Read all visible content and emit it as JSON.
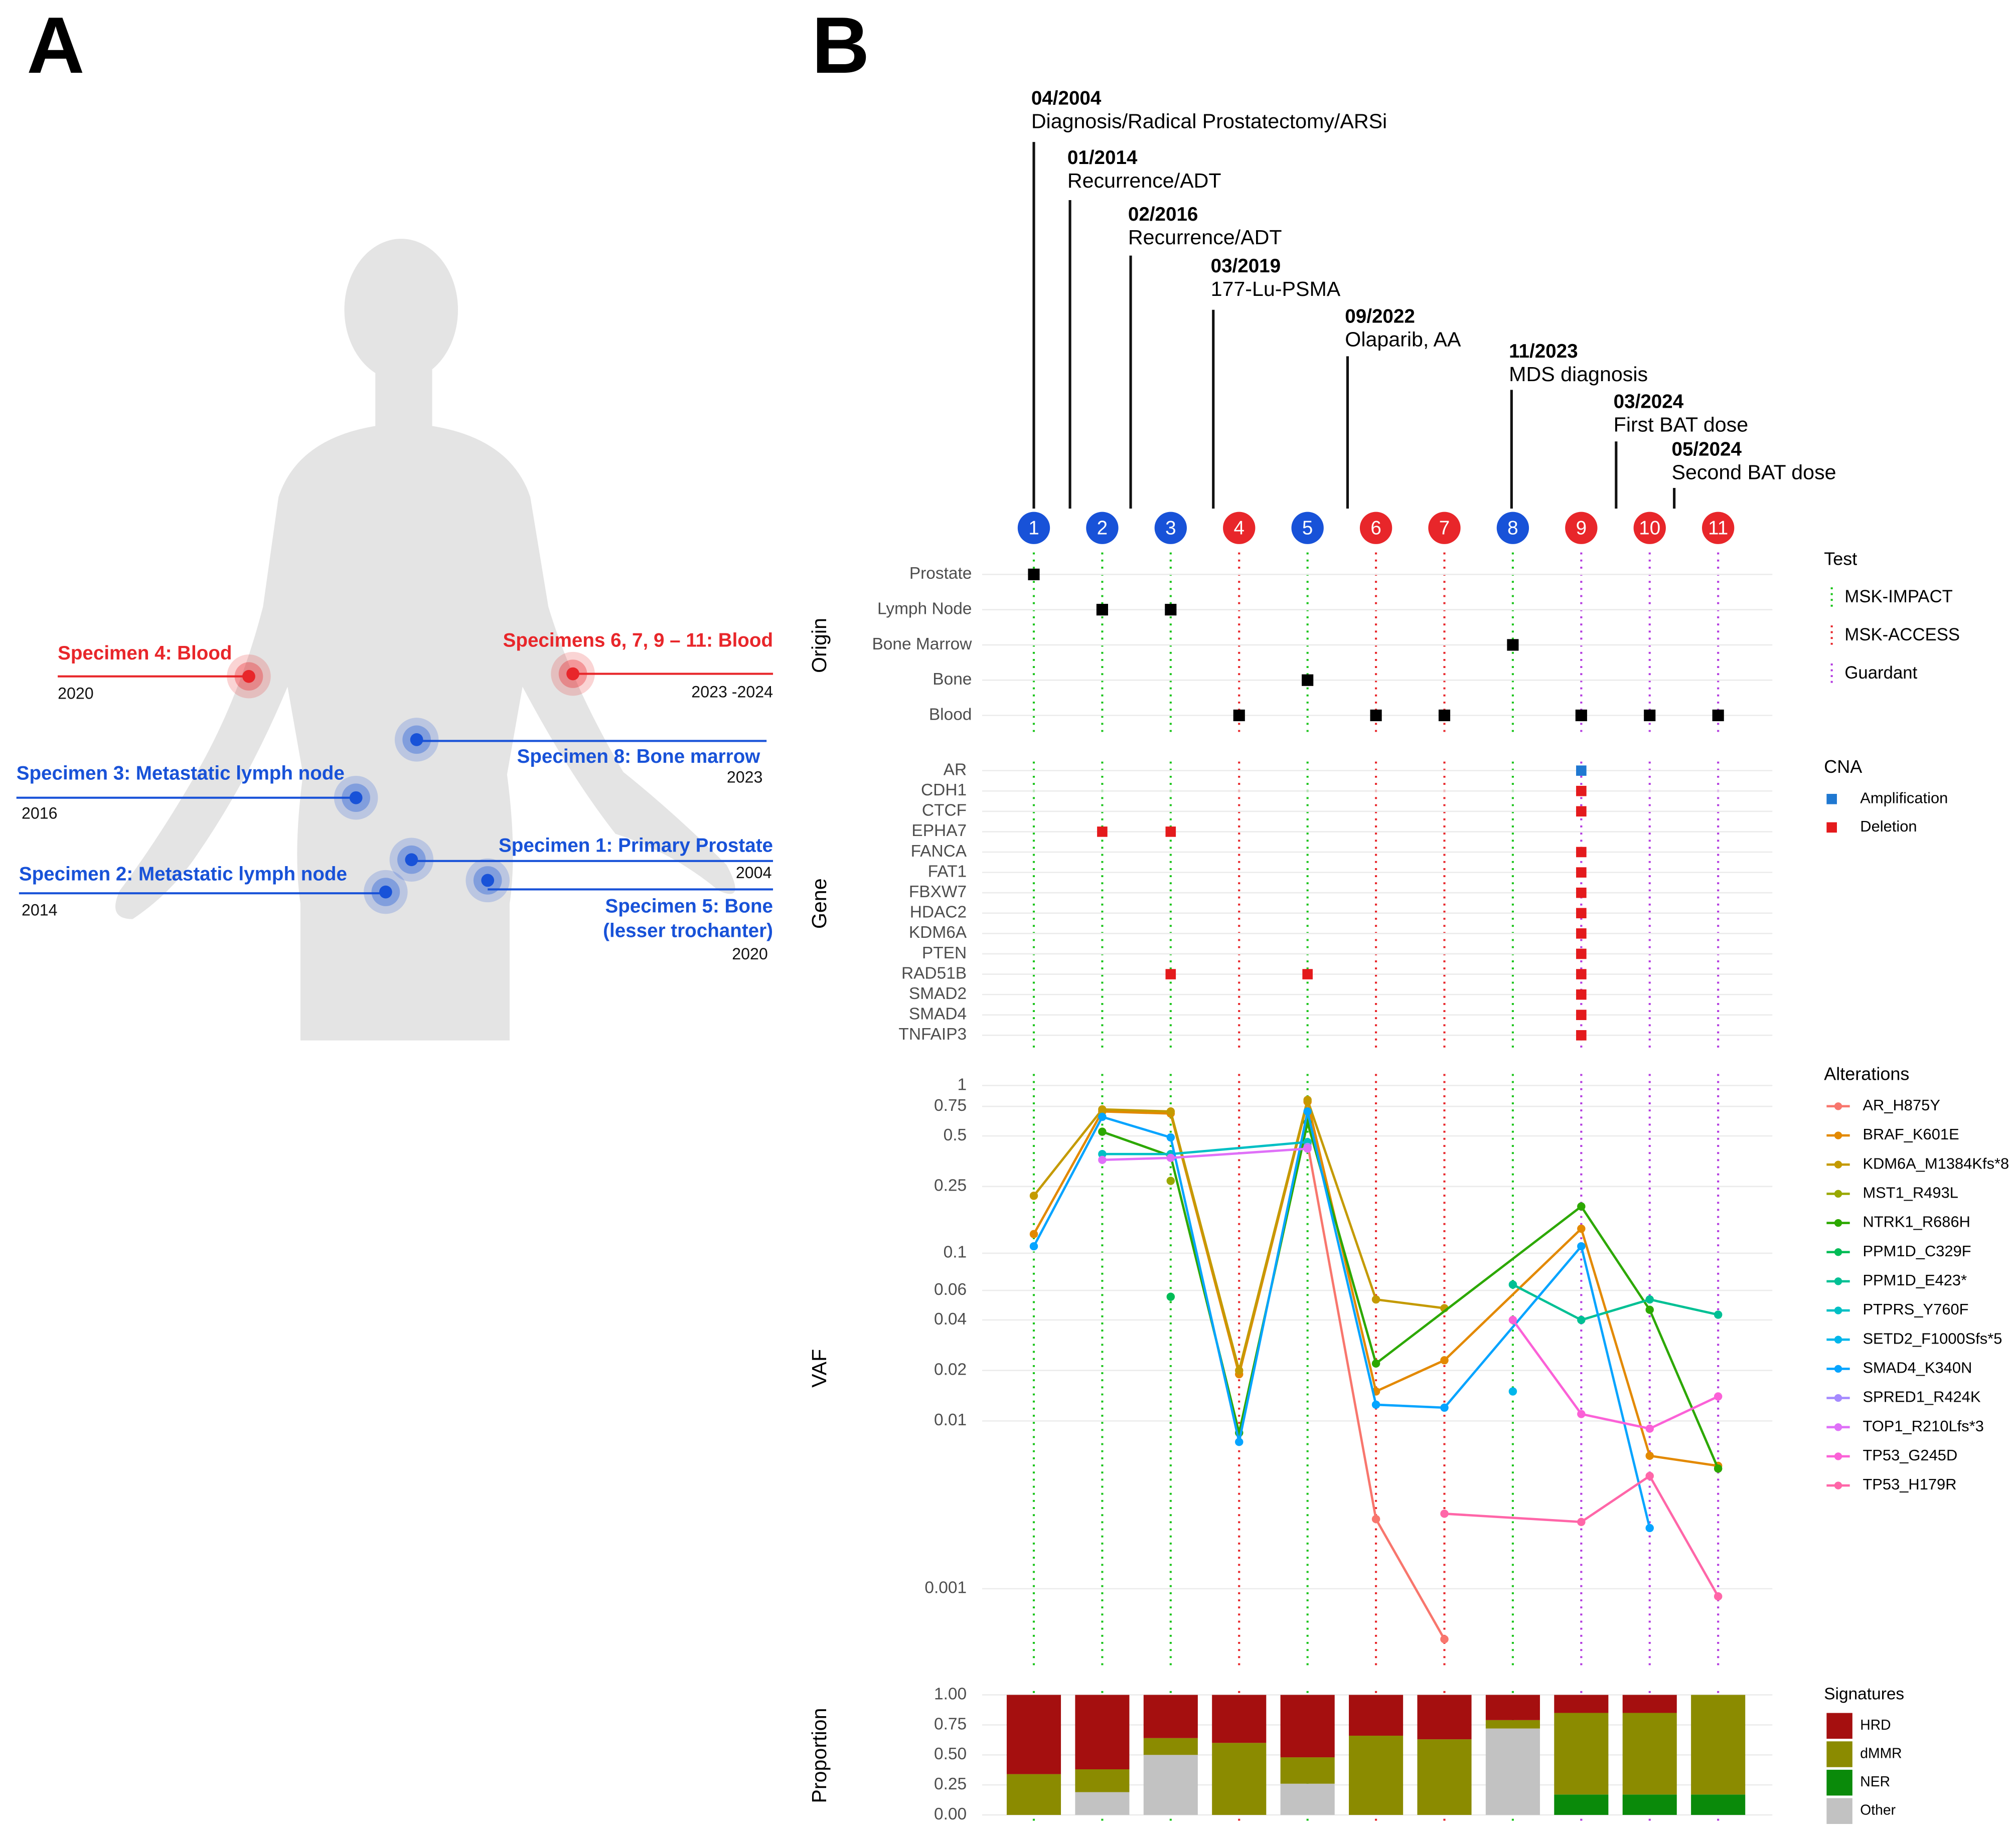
{
  "panel_labels": [
    "A",
    "B"
  ],
  "body_map": {
    "annotations": [
      {
        "lines": [
          "Specimen 4: Blood"
        ],
        "year": "2020",
        "color": "#e8262a"
      },
      {
        "lines": [
          "Specimens 6, 7, 9 – 11: Blood"
        ],
        "year": "2023 -2024",
        "color": "#e8262a"
      },
      {
        "lines": [
          "Specimen 8: Bone marrow"
        ],
        "year": "2023",
        "color": "#1852d8"
      },
      {
        "lines": [
          "Specimen 3: Metastatic lymph node"
        ],
        "year": "2016",
        "color": "#1852d8"
      },
      {
        "lines": [
          "Specimen 1: Primary Prostate"
        ],
        "year": "2004",
        "color": "#1852d8"
      },
      {
        "lines": [
          "Specimen 2: Metastatic lymph node"
        ],
        "year": "2014",
        "color": "#1852d8"
      },
      {
        "lines": [
          "Specimen 5: Bone",
          "(lesser trochanter)"
        ],
        "year": "2020",
        "color": "#1852d8"
      }
    ]
  },
  "timeline": {
    "events": [
      {
        "date": "04/2004",
        "label": "Diagnosis/Radical Prostatectomy/ARSi"
      },
      {
        "date": "01/2014",
        "label": "Recurrence/ADT"
      },
      {
        "date": "02/2016",
        "label": "Recurrence/ADT"
      },
      {
        "date": "03/2019",
        "label": "177-Lu-PSMA"
      },
      {
        "date": "09/2022",
        "label": "Olaparib, AA"
      },
      {
        "date": "11/2023",
        "label": "MDS diagnosis"
      },
      {
        "date": "03/2024",
        "label": "First BAT dose"
      },
      {
        "date": "05/2024",
        "label": "Second BAT dose"
      }
    ]
  },
  "specimens": {
    "labels": [
      "1",
      "2",
      "3",
      "4",
      "5",
      "6",
      "7",
      "8",
      "9",
      "10",
      "11"
    ],
    "colors": [
      "#1852d8",
      "#1852d8",
      "#1852d8",
      "#e8262a",
      "#1852d8",
      "#e8262a",
      "#e8262a",
      "#1852d8",
      "#e8262a",
      "#e8262a",
      "#e8262a"
    ],
    "test": [
      "MSK-IMPACT",
      "MSK-IMPACT",
      "MSK-IMPACT",
      "MSK-ACCESS",
      "MSK-IMPACT",
      "MSK-ACCESS",
      "MSK-ACCESS",
      "MSK-IMPACT",
      "Guardant",
      "Guardant",
      "Guardant"
    ]
  },
  "test_legend": {
    "title": "Test",
    "items": [
      {
        "name": "MSK-IMPACT",
        "color": "#1bc41b"
      },
      {
        "name": "MSK-ACCESS",
        "color": "#e8262a"
      },
      {
        "name": "Guardant",
        "color": "#b43ce0"
      }
    ]
  },
  "chart_data": [
    {
      "type": "tile",
      "y_label": "Origin",
      "rows": [
        "Prostate",
        "Lymph Node",
        "Bone Marrow",
        "Bone",
        "Blood"
      ],
      "values": [
        "Prostate",
        "Lymph Node",
        "Lymph Node",
        "Blood",
        "Bone",
        "Blood",
        "Blood",
        "Bone Marrow",
        "Blood",
        "Blood",
        "Blood"
      ],
      "color": "#000000"
    },
    {
      "type": "cells",
      "y_label": "Gene",
      "rows": [
        "AR",
        "CDH1",
        "CTCF",
        "EPHA7",
        "FANCA",
        "FAT1",
        "FBXW7",
        "HDAC2",
        "KDM6A",
        "PTEN",
        "RAD51B",
        "SMAD2",
        "SMAD4",
        "TNFAIP3"
      ],
      "legend_title": "CNA",
      "legend": [
        {
          "name": "Amplification",
          "color": "#1f78d1"
        },
        {
          "name": "Deletion",
          "color": "#e41a1c"
        }
      ],
      "cells": [
        {
          "row": "AR",
          "specimen": "9",
          "type": "Amplification"
        },
        {
          "row": "CDH1",
          "specimen": "9",
          "type": "Deletion"
        },
        {
          "row": "CTCF",
          "specimen": "9",
          "type": "Deletion"
        },
        {
          "row": "EPHA7",
          "specimen": "2",
          "type": "Deletion"
        },
        {
          "row": "EPHA7",
          "specimen": "3",
          "type": "Deletion"
        },
        {
          "row": "FANCA",
          "specimen": "9",
          "type": "Deletion"
        },
        {
          "row": "FAT1",
          "specimen": "9",
          "type": "Deletion"
        },
        {
          "row": "FBXW7",
          "specimen": "9",
          "type": "Deletion"
        },
        {
          "row": "HDAC2",
          "specimen": "9",
          "type": "Deletion"
        },
        {
          "row": "KDM6A",
          "specimen": "9",
          "type": "Deletion"
        },
        {
          "row": "PTEN",
          "specimen": "9",
          "type": "Deletion"
        },
        {
          "row": "RAD51B",
          "specimen": "3",
          "type": "Deletion"
        },
        {
          "row": "RAD51B",
          "specimen": "5",
          "type": "Deletion"
        },
        {
          "row": "RAD51B",
          "specimen": "9",
          "type": "Deletion"
        },
        {
          "row": "SMAD2",
          "specimen": "9",
          "type": "Deletion"
        },
        {
          "row": "SMAD4",
          "specimen": "9",
          "type": "Deletion"
        },
        {
          "row": "TNFAIP3",
          "specimen": "9",
          "type": "Deletion"
        }
      ]
    },
    {
      "type": "line",
      "y_label": "VAF",
      "log_scale": true,
      "grid": true,
      "ylim": [
        0.00035,
        1.13
      ],
      "yticks": [
        1,
        0.75,
        0.5,
        0.25,
        0.1,
        0.06,
        0.04,
        0.02,
        0.01,
        0.001
      ],
      "legend_title": "Alterations",
      "series": [
        {
          "name": "AR_H875Y",
          "color": "#f8766d",
          "x": [
            5,
            6,
            7
          ],
          "values": [
            0.45,
            0.0026,
            0.0005
          ]
        },
        {
          "name": "BRAF_K601E",
          "color": "#e38900",
          "x": [
            1,
            2,
            3,
            4,
            5,
            6,
            7,
            9,
            10,
            11
          ],
          "values": [
            0.13,
            0.7,
            0.68,
            0.019,
            0.8,
            0.015,
            0.023,
            0.14,
            0.0062,
            0.0054
          ]
        },
        {
          "name": "KDM6A_M1384Kfs*8",
          "color": "#c49a00",
          "x": [
            1,
            2,
            3,
            4,
            5,
            6,
            7
          ],
          "values": [
            0.22,
            0.72,
            0.7,
            0.02,
            0.82,
            0.053,
            0.047
          ]
        },
        {
          "name": "MST1_R493L",
          "color": "#99a800",
          "x": [
            3
          ],
          "values": [
            0.27
          ]
        },
        {
          "name": "NTRK1_R686H",
          "color": "#2ca800",
          "x": [
            2,
            3,
            4,
            5,
            6,
            9,
            10,
            11
          ],
          "values": [
            0.53,
            0.38,
            0.0085,
            0.6,
            0.022,
            0.19,
            0.046,
            0.0052
          ]
        },
        {
          "name": "PPM1D_C329F",
          "color": "#00bc56",
          "x": [
            3
          ],
          "values": [
            0.055
          ]
        },
        {
          "name": "PPM1D_E423*",
          "color": "#00c094",
          "x": [
            8,
            9,
            10,
            11
          ],
          "values": [
            0.065,
            0.04,
            0.053,
            0.043
          ]
        },
        {
          "name": "PTPRS_Y760F",
          "color": "#00bfc4",
          "x": [
            2,
            3,
            5
          ],
          "values": [
            0.39,
            0.39,
            0.46
          ]
        },
        {
          "name": "SETD2_F1000Sfs*5",
          "color": "#00b6eb",
          "x": [
            8
          ],
          "values": [
            0.015
          ]
        },
        {
          "name": "SMAD4_K340N",
          "color": "#06a4ff",
          "x": [
            1,
            2,
            3,
            4,
            5,
            6,
            7,
            9,
            10
          ],
          "values": [
            0.11,
            0.65,
            0.49,
            0.0075,
            0.7,
            0.0125,
            0.012,
            0.11,
            0.0023
          ]
        },
        {
          "name": "SPRED1_R424K",
          "color": "#a58aff",
          "x": [
            5
          ],
          "values": [
            0.43
          ]
        },
        {
          "name": "TOP1_R210Lfs*3",
          "color": "#df70f8",
          "x": [
            2,
            3,
            5
          ],
          "values": [
            0.36,
            0.37,
            0.42
          ]
        },
        {
          "name": "TP53_G245D",
          "color": "#fb61d7",
          "x": [
            8,
            9,
            10,
            11
          ],
          "values": [
            0.04,
            0.011,
            0.009,
            0.014
          ]
        },
        {
          "name": "TP53_H179R",
          "color": "#ff66a8",
          "x": [
            7,
            9,
            10,
            11
          ],
          "values": [
            0.0028,
            0.0025,
            0.0047,
            0.0009
          ]
        }
      ]
    },
    {
      "type": "bar",
      "stacked": true,
      "y_label": "Proportion",
      "grid": true,
      "ylim": [
        0,
        1
      ],
      "yticks": [
        {
          "value": 0,
          "label": "0.00"
        },
        {
          "value": 0.25,
          "label": "0.25"
        },
        {
          "value": 0.5,
          "label": "0.50"
        },
        {
          "value": 0.75,
          "label": "0.75"
        },
        {
          "value": 1,
          "label": "1.00"
        }
      ],
      "legend_title": "Signatures",
      "series": [
        {
          "name": "HRD",
          "color": "#a50f0f",
          "values": [
            0.66,
            0.62,
            0.36,
            0.4,
            0.52,
            0.34,
            0.37,
            0.21,
            0.15,
            0.15,
            0
          ]
        },
        {
          "name": "dMMR",
          "color": "#8b8b00",
          "values": [
            0.34,
            0.19,
            0.14,
            0.6,
            0.22,
            0.66,
            0.63,
            0.07,
            0.68,
            0.68,
            0.83
          ]
        },
        {
          "name": "NER",
          "color": "#0a8a0a",
          "values": [
            0,
            0,
            0,
            0,
            0,
            0,
            0,
            0,
            0.17,
            0.17,
            0.17
          ]
        },
        {
          "name": "Other",
          "color": "#c2c2c2",
          "values": [
            0,
            0.19,
            0.5,
            0,
            0.26,
            0,
            0,
            0.72,
            0,
            0,
            0
          ]
        }
      ]
    }
  ]
}
